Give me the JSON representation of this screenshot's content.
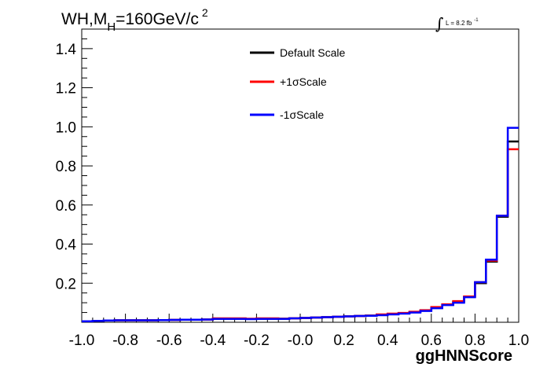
{
  "chart_data": {
    "type": "line",
    "title": {
      "main": "WH,M",
      "subscript": "H",
      "rest": "=160GeV/c",
      "superscript": "2"
    },
    "lumi": {
      "integral_symbol": "∫",
      "text": "L = 8.2 fb",
      "superscript": "-1"
    },
    "xlabel": "ggHNNScore",
    "ylabel": "",
    "xlim": [
      -1.0,
      1.0
    ],
    "ylim": [
      0.0,
      1.5
    ],
    "x_tick_labels": [
      "-1.0",
      "-0.8",
      "-0.6",
      "-0.4",
      "-0.2",
      "-0.0",
      "0.2",
      "0.4",
      "0.6",
      "0.8",
      "1.0"
    ],
    "y_ticks": [
      0.2,
      0.4,
      0.6,
      0.8,
      1.0,
      1.2,
      1.4
    ],
    "y_tick_labels": [
      "0.2",
      "0.4",
      "0.6",
      "0.8",
      "1.0",
      "1.2",
      "1.4"
    ],
    "bin_edges": [
      -1.0,
      -0.95,
      -0.9,
      -0.85,
      -0.8,
      -0.75,
      -0.7,
      -0.65,
      -0.6,
      -0.55,
      -0.5,
      -0.45,
      -0.4,
      -0.35,
      -0.3,
      -0.25,
      -0.2,
      -0.15,
      -0.1,
      -0.05,
      0.0,
      0.05,
      0.1,
      0.15,
      0.2,
      0.25,
      0.3,
      0.35,
      0.4,
      0.45,
      0.5,
      0.55,
      0.6,
      0.65,
      0.7,
      0.75,
      0.8,
      0.85,
      0.9,
      0.95,
      1.0
    ],
    "grid": false,
    "legend_position": "top-center",
    "series": [
      {
        "name": "Default Scale",
        "color": "#000000",
        "values": [
          0.005,
          0.007,
          0.009,
          0.01,
          0.01,
          0.01,
          0.01,
          0.011,
          0.012,
          0.013,
          0.013,
          0.014,
          0.018,
          0.018,
          0.018,
          0.017,
          0.018,
          0.018,
          0.018,
          0.02,
          0.022,
          0.024,
          0.026,
          0.028,
          0.03,
          0.032,
          0.034,
          0.038,
          0.042,
          0.046,
          0.052,
          0.06,
          0.075,
          0.09,
          0.105,
          0.13,
          0.2,
          0.31,
          0.54,
          0.925
        ]
      },
      {
        "name": "+1σScale",
        "color": "#ff0000",
        "values": [
          0.005,
          0.007,
          0.009,
          0.01,
          0.01,
          0.01,
          0.01,
          0.011,
          0.012,
          0.013,
          0.013,
          0.014,
          0.02,
          0.02,
          0.02,
          0.018,
          0.02,
          0.02,
          0.018,
          0.02,
          0.022,
          0.024,
          0.026,
          0.028,
          0.03,
          0.032,
          0.034,
          0.04,
          0.044,
          0.048,
          0.054,
          0.062,
          0.078,
          0.092,
          0.108,
          0.132,
          0.205,
          0.315,
          0.545,
          0.885
        ]
      },
      {
        "name": "-1σScale",
        "color": "#0000ff",
        "values": [
          0.005,
          0.007,
          0.009,
          0.01,
          0.01,
          0.01,
          0.01,
          0.011,
          0.012,
          0.013,
          0.013,
          0.014,
          0.017,
          0.017,
          0.017,
          0.016,
          0.017,
          0.017,
          0.017,
          0.02,
          0.022,
          0.024,
          0.026,
          0.028,
          0.03,
          0.032,
          0.033,
          0.036,
          0.04,
          0.044,
          0.05,
          0.058,
          0.072,
          0.088,
          0.1,
          0.128,
          0.205,
          0.32,
          0.545,
          0.995
        ]
      }
    ]
  }
}
